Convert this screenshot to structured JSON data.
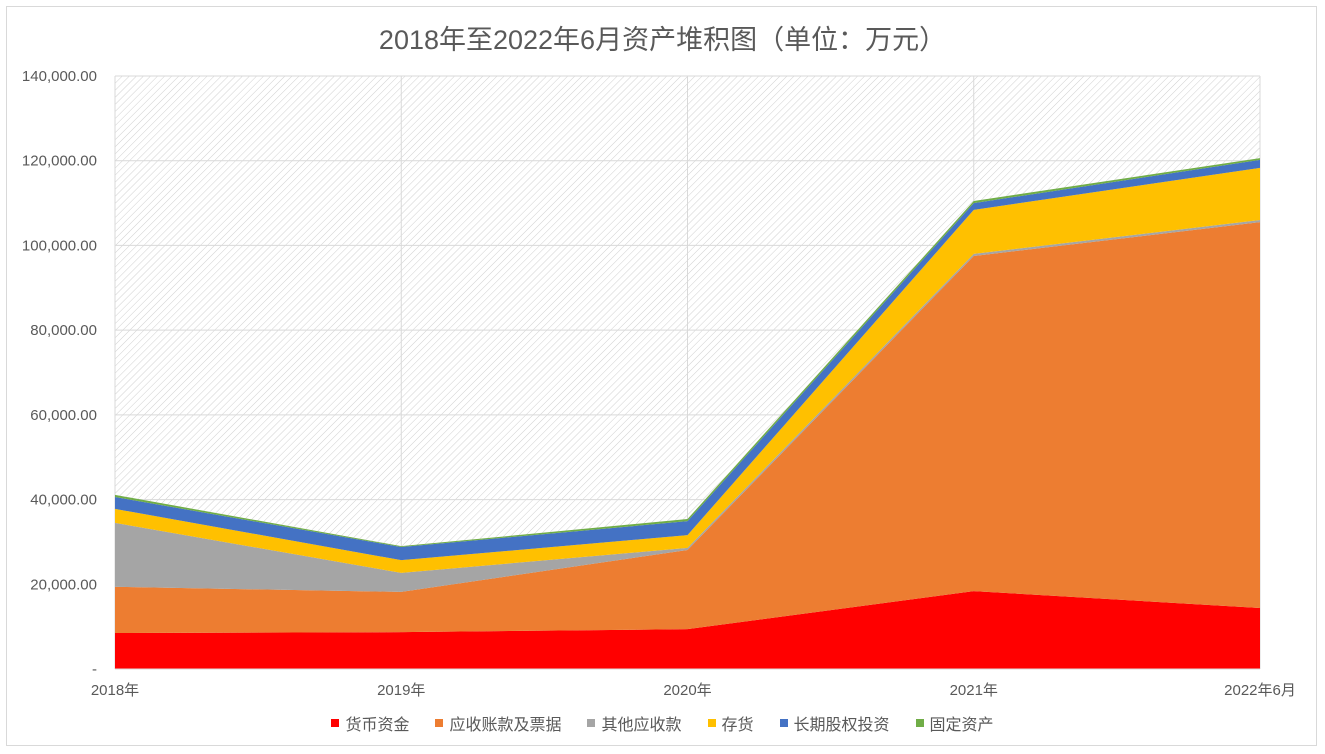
{
  "chart_data": {
    "type": "area",
    "stacked": true,
    "title": "2018年至2022年6月资产堆积图（单位：万元）",
    "categories": [
      "2018年",
      "2019年",
      "2020年",
      "2021年",
      "2022年6月"
    ],
    "ylim": [
      0,
      140000
    ],
    "yticks": [
      0,
      20000,
      40000,
      60000,
      80000,
      100000,
      120000,
      140000
    ],
    "ytick_labels": [
      "-",
      "20,000.00",
      "40,000.00",
      "60,000.00",
      "80,000.00",
      "100,000.00",
      "120,000.00",
      "140,000.00"
    ],
    "grid": true,
    "legend_position": "bottom",
    "series": [
      {
        "name": "货币资金",
        "color": "#ff0000",
        "values": [
          8500,
          8700,
          9400,
          18400,
          14400
        ]
      },
      {
        "name": "应收账款及票据",
        "color": "#ed7d31",
        "values": [
          10900,
          9500,
          18700,
          79100,
          91100
        ]
      },
      {
        "name": "其他应收款",
        "color": "#a5a5a5",
        "values": [
          15100,
          4500,
          500,
          500,
          500
        ]
      },
      {
        "name": "存货",
        "color": "#ffc000",
        "values": [
          3300,
          3000,
          3000,
          10400,
          12300
        ]
      },
      {
        "name": "长期股权投资",
        "color": "#4472c4",
        "values": [
          2800,
          3100,
          3300,
          1600,
          1900
        ]
      },
      {
        "name": "固定资产",
        "color": "#70ad47",
        "values": [
          500,
          200,
          500,
          500,
          400
        ]
      }
    ]
  }
}
